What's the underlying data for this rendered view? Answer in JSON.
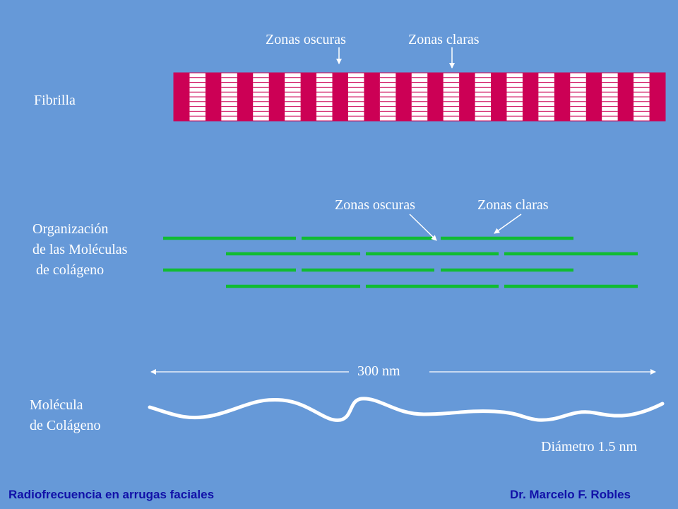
{
  "fibril": {
    "label": "Fibrilla",
    "dark_zone_label": "Zonas oscuras",
    "light_zone_label": "Zonas claras",
    "dark_color": "#cc0055",
    "light_color": "#ffffff"
  },
  "organization": {
    "label_line1": "Organización",
    "label_line2": "de las Moléculas",
    "label_line3": " de colágeno",
    "dark_zone_label": "Zonas oscuras",
    "light_zone_label": "Zonas claras",
    "molecule_color": "#11bb33"
  },
  "molecule": {
    "label_line1": "Molécula",
    "label_line2": "de Colágeno",
    "length_label": "300 nm",
    "diameter_label": "Diámetro 1.5 nm"
  },
  "footer": {
    "left": "Radiofrecuencia en arrugas faciales",
    "right": "Dr. Marcelo F. Robles",
    "color": "#1111a8"
  }
}
